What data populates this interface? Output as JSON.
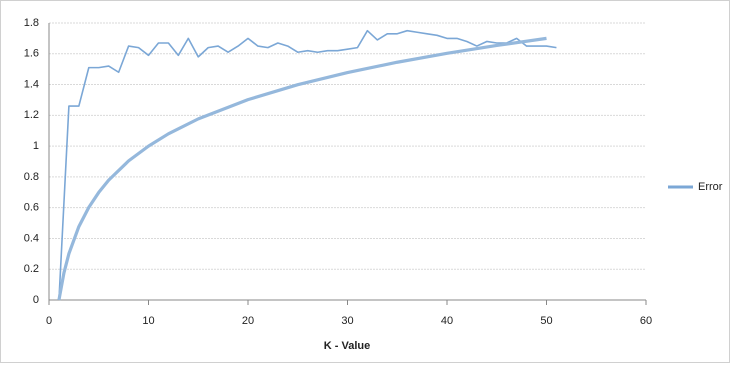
{
  "chart_data": {
    "type": "line",
    "x_label": "K - Value",
    "xlim": [
      0,
      60
    ],
    "xticks": [
      0,
      10,
      20,
      30,
      40,
      50,
      60
    ],
    "ylim": [
      0,
      1.8
    ],
    "yticks": [
      0,
      0.2,
      0.4,
      0.6,
      0.8,
      1,
      1.2,
      1.4,
      1.6,
      1.8
    ],
    "grid": true,
    "legend": "right",
    "series": [
      {
        "name": "Error",
        "color": "#7ba7d6",
        "line_width": 1.6,
        "x": [
          1,
          2,
          3,
          4,
          5,
          6,
          7,
          8,
          9,
          10,
          11,
          12,
          13,
          14,
          15,
          16,
          17,
          18,
          19,
          20,
          21,
          22,
          23,
          24,
          25,
          26,
          27,
          28,
          29,
          30,
          31,
          32,
          33,
          34,
          35,
          36,
          37,
          38,
          39,
          40,
          41,
          42,
          43,
          44,
          45,
          46,
          47,
          48,
          49,
          50,
          51
        ],
        "values": [
          0,
          1.26,
          1.26,
          1.51,
          1.51,
          1.52,
          1.48,
          1.65,
          1.64,
          1.59,
          1.67,
          1.67,
          1.59,
          1.7,
          1.58,
          1.64,
          1.65,
          1.61,
          1.65,
          1.7,
          1.65,
          1.64,
          1.67,
          1.65,
          1.61,
          1.62,
          1.61,
          1.62,
          1.62,
          1.63,
          1.64,
          1.75,
          1.69,
          1.73,
          1.73,
          1.75,
          1.74,
          1.73,
          1.72,
          1.7,
          1.7,
          1.68,
          1.65,
          1.68,
          1.67,
          1.67,
          1.7,
          1.65,
          1.65,
          1.65,
          1.64
        ]
      },
      {
        "color": "#95b8dc",
        "line_width": 3.2,
        "x": [
          1,
          1.5,
          2,
          3,
          4,
          5,
          6,
          8,
          10,
          12,
          15,
          20,
          25,
          30,
          35,
          40,
          45,
          50
        ],
        "values": [
          0,
          0.176,
          0.301,
          0.477,
          0.602,
          0.699,
          0.779,
          0.904,
          1.0,
          1.08,
          1.177,
          1.302,
          1.399,
          1.478,
          1.545,
          1.603,
          1.654,
          1.7
        ]
      }
    ]
  }
}
